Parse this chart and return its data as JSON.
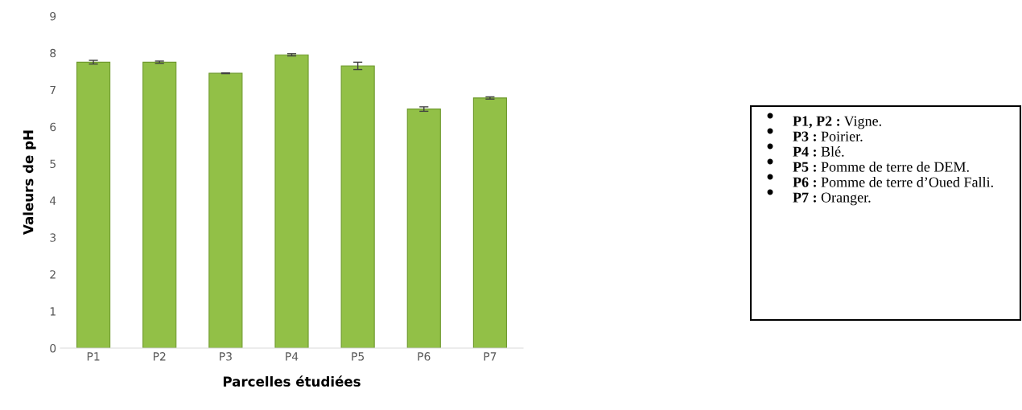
{
  "chart_data": {
    "type": "bar",
    "xlabel": "Parcelles étudiées",
    "ylabel": "Valeurs de pH",
    "categories": [
      "P1",
      "P2",
      "P3",
      "P4",
      "P5",
      "P6",
      "P7"
    ],
    "values": [
      7.75,
      7.75,
      7.45,
      7.95,
      7.65,
      6.48,
      6.78
    ],
    "errors": [
      0.05,
      0.03,
      0.01,
      0.03,
      0.1,
      0.06,
      0.03
    ],
    "color": "#92c047",
    "ylim": [
      0,
      9
    ],
    "yticks": [
      0,
      1,
      2,
      3,
      4,
      5,
      6,
      7,
      8,
      9
    ],
    "grid": false,
    "legend": false,
    "annotations": [
      "P1, P2 : Vigne.",
      "P3 : Poirier.",
      "P4 : Blé.",
      "P5 : Pomme de terre de DEM.",
      "P6 : Pomme de terre d’Oued Falli.",
      "P7 : Oranger."
    ]
  }
}
